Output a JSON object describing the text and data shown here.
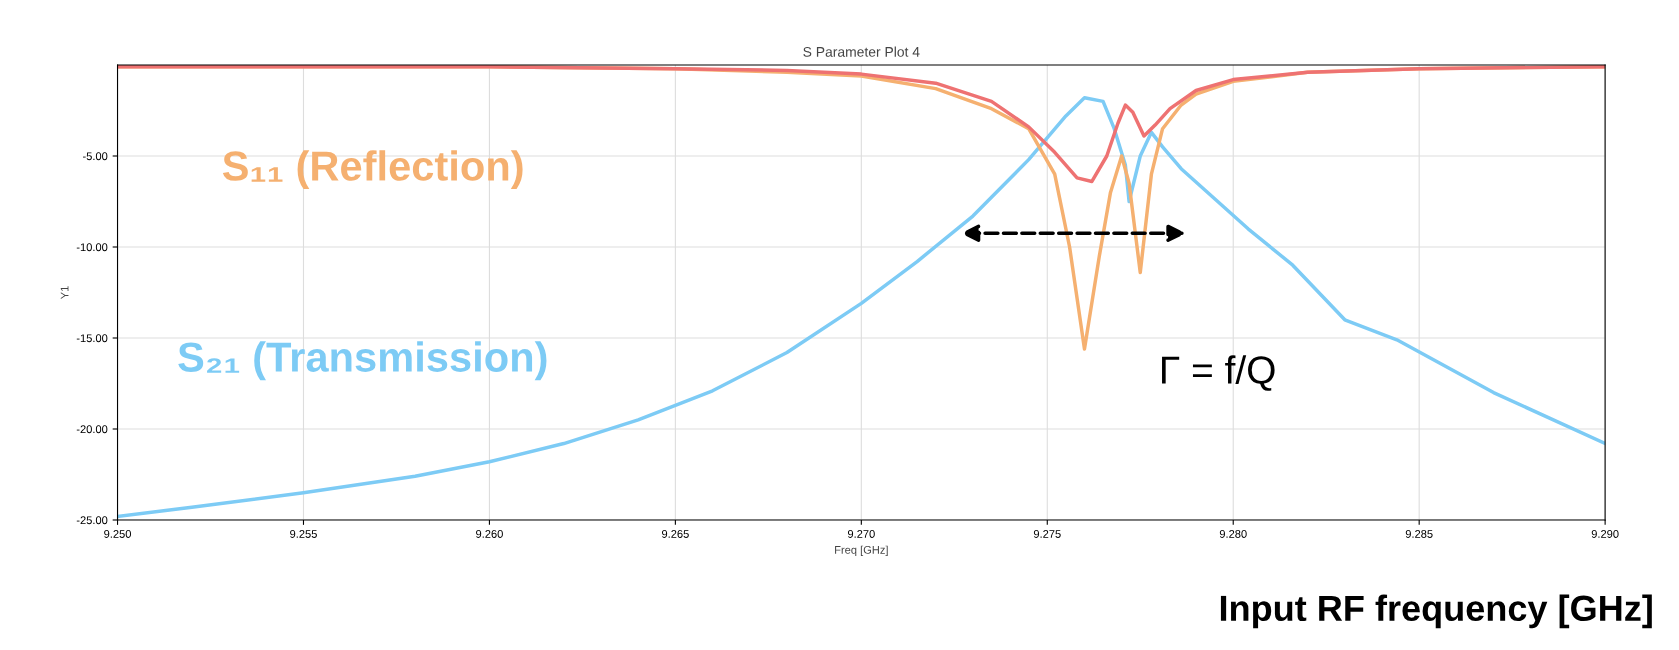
{
  "chart_data": {
    "type": "line",
    "title": "S Parameter Plot 4",
    "xlabel": "Freq [GHz]",
    "ylabel": "Y1",
    "xlim": [
      9.25,
      9.29
    ],
    "xticks": [
      {
        "value": 9.25,
        "label": "9.250"
      },
      {
        "value": 9.255,
        "label": "9.255"
      },
      {
        "value": 9.26,
        "label": "9.260"
      },
      {
        "value": 9.265,
        "label": "9.265"
      },
      {
        "value": 9.27,
        "label": "9.270"
      },
      {
        "value": 9.275,
        "label": "9.275"
      },
      {
        "value": 9.28,
        "label": "9.280"
      },
      {
        "value": 9.285,
        "label": "9.285"
      },
      {
        "value": 9.29,
        "label": "9.290"
      }
    ],
    "ylim": [
      -25,
      0
    ],
    "yticks": [
      {
        "value": -25,
        "label": "-25.00"
      },
      {
        "value": -20,
        "label": "-20.00"
      },
      {
        "value": -15,
        "label": "-15.00"
      },
      {
        "value": -10,
        "label": "-10.00"
      },
      {
        "value": -5,
        "label": "-5.00"
      }
    ],
    "grid": true,
    "marker": "none",
    "line_style": "solid",
    "series": [
      {
        "name": "S₂₁ (Transmission)",
        "color": "#7dcbf5",
        "x": [
          9.25,
          9.252,
          9.255,
          9.258,
          9.26,
          9.262,
          9.264,
          9.266,
          9.268,
          9.27,
          9.2715,
          9.273,
          9.2745,
          9.2755,
          9.276,
          9.2765,
          9.2768,
          9.2771,
          9.2772,
          9.2775,
          9.2778,
          9.2781,
          9.2786,
          9.2804,
          9.2816,
          9.283,
          9.2844,
          9.287,
          9.29
        ],
        "values": [
          -24.8,
          -24.3,
          -23.5,
          -22.6,
          -21.8,
          -20.8,
          -19.5,
          -17.9,
          -15.8,
          -13.1,
          -10.8,
          -8.3,
          -5.2,
          -2.8,
          -1.8,
          -2.0,
          -3.5,
          -5.5,
          -7.5,
          -5.0,
          -3.7,
          -4.5,
          -5.7,
          -9.0,
          -11.0,
          -14.0,
          -15.1,
          -18.0,
          -20.8
        ]
      },
      {
        "name": "S₁₁ (Reflection)",
        "color": "#f5b070",
        "x": [
          9.25,
          9.26,
          9.265,
          9.268,
          9.27,
          9.272,
          9.2735,
          9.2745,
          9.2752,
          9.2756,
          9.276,
          9.2764,
          9.2767,
          9.277,
          9.2772,
          9.2775,
          9.2778,
          9.2781,
          9.2786,
          9.279,
          9.28,
          9.282,
          9.285,
          9.29
        ],
        "values": [
          -0.1,
          -0.1,
          -0.2,
          -0.4,
          -0.6,
          -1.3,
          -2.4,
          -3.5,
          -6.0,
          -10.0,
          -15.6,
          -10.5,
          -7.0,
          -5.0,
          -6.5,
          -11.4,
          -6.0,
          -3.5,
          -2.2,
          -1.6,
          -0.9,
          -0.4,
          -0.2,
          -0.1
        ]
      },
      {
        "color": "#ee7272",
        "x": [
          9.25,
          9.26,
          9.265,
          9.268,
          9.27,
          9.272,
          9.2735,
          9.2745,
          9.2752,
          9.2758,
          9.2762,
          9.2766,
          9.2769,
          9.2771,
          9.2773,
          9.2776,
          9.2779,
          9.2783,
          9.279,
          9.28,
          9.282,
          9.285,
          9.29
        ],
        "values": [
          -0.1,
          -0.1,
          -0.2,
          -0.3,
          -0.5,
          -1.0,
          -2.0,
          -3.4,
          -4.8,
          -6.2,
          -6.4,
          -5.0,
          -3.2,
          -2.2,
          -2.6,
          -3.9,
          -3.3,
          -2.4,
          -1.4,
          -0.8,
          -0.4,
          -0.2,
          -0.1
        ]
      }
    ],
    "annotations": [
      "Γ = f/Q",
      "Input RF frequency [GHz]"
    ]
  }
}
